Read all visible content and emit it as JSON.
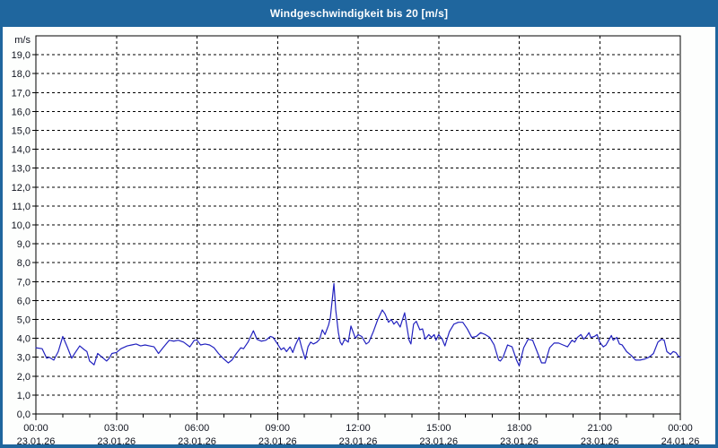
{
  "window": {
    "title": "Windgeschwindigkeit bis 20 [m/s]",
    "title_bar_color": "#1F669E",
    "frame_color": "#1F669E",
    "background": "#FDFEFD"
  },
  "chart_data": {
    "type": "line",
    "title": "Windgeschwindigkeit bis 20 [m/s]",
    "ylabel": "m/s",
    "unit_label": "m/s",
    "ylim": [
      0,
      20
    ],
    "grid": "dashed",
    "legend": "none",
    "colors": {
      "line": "#2121BF",
      "grid": "#000000",
      "axis": "#000000",
      "label": "#10141F",
      "plot_bg": "#FFFFFF"
    },
    "y_ticks": [
      {
        "value": 0,
        "label": "0,0"
      },
      {
        "value": 1,
        "label": "1,0"
      },
      {
        "value": 2,
        "label": "2,0"
      },
      {
        "value": 3,
        "label": "3,0"
      },
      {
        "value": 4,
        "label": "4,0"
      },
      {
        "value": 5,
        "label": "5,0"
      },
      {
        "value": 6,
        "label": "6,0"
      },
      {
        "value": 7,
        "label": "7,0"
      },
      {
        "value": 8,
        "label": "8,0"
      },
      {
        "value": 9,
        "label": "9,0"
      },
      {
        "value": 10,
        "label": "10,0"
      },
      {
        "value": 11,
        "label": "11,0"
      },
      {
        "value": 12,
        "label": "12,0"
      },
      {
        "value": 13,
        "label": "13,0"
      },
      {
        "value": 14,
        "label": "14,0"
      },
      {
        "value": 15,
        "label": "15,0"
      },
      {
        "value": 16,
        "label": "16,0"
      },
      {
        "value": 17,
        "label": "17,0"
      },
      {
        "value": 18,
        "label": "18,0"
      },
      {
        "value": 19,
        "label": "19,0"
      }
    ],
    "x_ticks": [
      {
        "hour": 0,
        "time": "00:00",
        "date": "23.01.26"
      },
      {
        "hour": 3,
        "time": "03:00",
        "date": "23.01.26"
      },
      {
        "hour": 6,
        "time": "06:00",
        "date": "23.01.26"
      },
      {
        "hour": 9,
        "time": "09:00",
        "date": "23.01.26"
      },
      {
        "hour": 12,
        "time": "12:00",
        "date": "23.01.26"
      },
      {
        "hour": 15,
        "time": "15:00",
        "date": "23.01.26"
      },
      {
        "hour": 18,
        "time": "18:00",
        "date": "23.01.26"
      },
      {
        "hour": 21,
        "time": "21:00",
        "date": "23.01.26"
      },
      {
        "hour": 24,
        "time": "00:00",
        "date": "24.01.26"
      }
    ],
    "minor_tick_hours": 1,
    "x_range_hours": [
      0,
      24
    ],
    "series": [
      {
        "name": "Windgeschwindigkeit",
        "points_minute_value": [
          [
            0,
            3.5
          ],
          [
            14,
            3.45
          ],
          [
            24,
            2.95
          ],
          [
            30,
            3.0
          ],
          [
            40,
            2.85
          ],
          [
            50,
            3.3
          ],
          [
            60,
            4.1
          ],
          [
            70,
            3.55
          ],
          [
            80,
            2.95
          ],
          [
            88,
            3.25
          ],
          [
            98,
            3.6
          ],
          [
            108,
            3.4
          ],
          [
            114,
            3.3
          ],
          [
            120,
            2.8
          ],
          [
            130,
            2.6
          ],
          [
            138,
            3.2
          ],
          [
            148,
            3.0
          ],
          [
            158,
            2.8
          ],
          [
            164,
            2.95
          ],
          [
            170,
            3.2
          ],
          [
            180,
            3.25
          ],
          [
            190,
            3.45
          ],
          [
            204,
            3.6
          ],
          [
            214,
            3.65
          ],
          [
            224,
            3.7
          ],
          [
            234,
            3.6
          ],
          [
            244,
            3.65
          ],
          [
            254,
            3.6
          ],
          [
            264,
            3.55
          ],
          [
            274,
            3.2
          ],
          [
            284,
            3.5
          ],
          [
            298,
            3.9
          ],
          [
            308,
            3.85
          ],
          [
            318,
            3.9
          ],
          [
            330,
            3.8
          ],
          [
            344,
            3.55
          ],
          [
            354,
            3.9
          ],
          [
            360,
            3.9
          ],
          [
            368,
            3.65
          ],
          [
            378,
            3.7
          ],
          [
            388,
            3.65
          ],
          [
            398,
            3.5
          ],
          [
            408,
            3.2
          ],
          [
            418,
            2.95
          ],
          [
            430,
            2.7
          ],
          [
            438,
            2.85
          ],
          [
            448,
            3.2
          ],
          [
            458,
            3.5
          ],
          [
            464,
            3.45
          ],
          [
            474,
            3.8
          ],
          [
            486,
            4.4
          ],
          [
            494,
            3.95
          ],
          [
            504,
            3.85
          ],
          [
            514,
            3.9
          ],
          [
            524,
            4.1
          ],
          [
            530,
            4.05
          ],
          [
            540,
            3.7
          ],
          [
            548,
            3.4
          ],
          [
            554,
            3.5
          ],
          [
            560,
            3.3
          ],
          [
            568,
            3.55
          ],
          [
            574,
            3.25
          ],
          [
            580,
            3.65
          ],
          [
            588,
            4.05
          ],
          [
            594,
            3.5
          ],
          [
            602,
            2.9
          ],
          [
            608,
            3.55
          ],
          [
            614,
            3.8
          ],
          [
            620,
            3.7
          ],
          [
            628,
            3.8
          ],
          [
            634,
            3.95
          ],
          [
            640,
            4.45
          ],
          [
            646,
            4.2
          ],
          [
            654,
            4.7
          ],
          [
            658,
            5.1
          ],
          [
            662,
            6.0
          ],
          [
            666,
            6.9
          ],
          [
            670,
            5.5
          ],
          [
            676,
            4.3
          ],
          [
            680,
            3.8
          ],
          [
            684,
            3.65
          ],
          [
            690,
            3.95
          ],
          [
            698,
            3.8
          ],
          [
            704,
            4.65
          ],
          [
            714,
            4.0
          ],
          [
            720,
            4.2
          ],
          [
            728,
            4.1
          ],
          [
            738,
            3.7
          ],
          [
            744,
            3.8
          ],
          [
            754,
            4.35
          ],
          [
            764,
            5.0
          ],
          [
            774,
            5.5
          ],
          [
            780,
            5.3
          ],
          [
            788,
            4.85
          ],
          [
            794,
            5.0
          ],
          [
            800,
            4.75
          ],
          [
            806,
            4.9
          ],
          [
            814,
            4.6
          ],
          [
            824,
            5.35
          ],
          [
            834,
            3.9
          ],
          [
            838,
            3.7
          ],
          [
            844,
            4.75
          ],
          [
            850,
            4.9
          ],
          [
            858,
            4.45
          ],
          [
            864,
            4.5
          ],
          [
            870,
            3.95
          ],
          [
            878,
            4.2
          ],
          [
            884,
            4.05
          ],
          [
            890,
            4.2
          ],
          [
            894,
            3.9
          ],
          [
            900,
            4.2
          ],
          [
            908,
            3.95
          ],
          [
            914,
            3.6
          ],
          [
            924,
            4.35
          ],
          [
            934,
            4.75
          ],
          [
            944,
            4.85
          ],
          [
            954,
            4.85
          ],
          [
            964,
            4.5
          ],
          [
            974,
            4.05
          ],
          [
            984,
            4.1
          ],
          [
            994,
            4.3
          ],
          [
            1004,
            4.2
          ],
          [
            1014,
            4.05
          ],
          [
            1024,
            3.65
          ],
          [
            1034,
            2.85
          ],
          [
            1038,
            2.8
          ],
          [
            1044,
            3.0
          ],
          [
            1054,
            3.65
          ],
          [
            1064,
            3.55
          ],
          [
            1074,
            2.85
          ],
          [
            1080,
            2.55
          ],
          [
            1090,
            3.5
          ],
          [
            1100,
            3.95
          ],
          [
            1110,
            3.9
          ],
          [
            1120,
            3.3
          ],
          [
            1130,
            2.7
          ],
          [
            1138,
            2.7
          ],
          [
            1148,
            3.5
          ],
          [
            1158,
            3.75
          ],
          [
            1168,
            3.75
          ],
          [
            1178,
            3.65
          ],
          [
            1188,
            3.55
          ],
          [
            1198,
            3.9
          ],
          [
            1204,
            3.8
          ],
          [
            1210,
            4.05
          ],
          [
            1218,
            4.2
          ],
          [
            1224,
            3.95
          ],
          [
            1230,
            4.1
          ],
          [
            1236,
            4.3
          ],
          [
            1240,
            4.05
          ],
          [
            1248,
            4.1
          ],
          [
            1254,
            4.2
          ],
          [
            1260,
            3.8
          ],
          [
            1268,
            3.55
          ],
          [
            1274,
            3.65
          ],
          [
            1286,
            4.15
          ],
          [
            1290,
            3.9
          ],
          [
            1298,
            4.05
          ],
          [
            1304,
            3.7
          ],
          [
            1310,
            3.65
          ],
          [
            1320,
            3.3
          ],
          [
            1330,
            3.1
          ],
          [
            1340,
            2.85
          ],
          [
            1350,
            2.85
          ],
          [
            1360,
            2.9
          ],
          [
            1370,
            3.0
          ],
          [
            1380,
            3.2
          ],
          [
            1390,
            3.8
          ],
          [
            1398,
            3.95
          ],
          [
            1404,
            3.9
          ],
          [
            1410,
            3.3
          ],
          [
            1418,
            3.15
          ],
          [
            1424,
            3.3
          ],
          [
            1430,
            3.25
          ],
          [
            1436,
            3.05
          ],
          [
            1440,
            3.0
          ]
        ]
      }
    ]
  }
}
